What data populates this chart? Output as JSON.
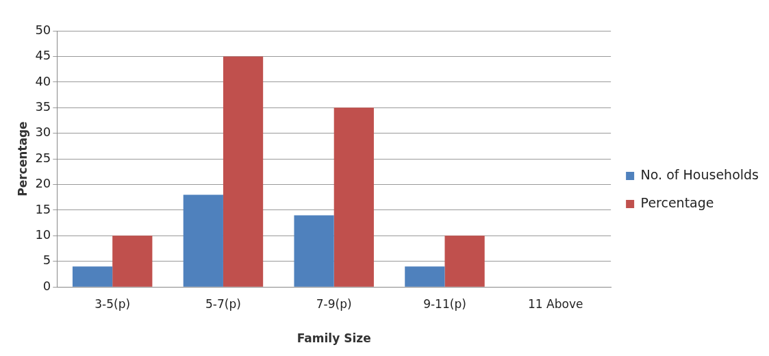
{
  "chart_data": {
    "type": "bar",
    "xlabel": "Family Size",
    "ylabel": "Percentage",
    "categories": [
      "3-5(p)",
      "5-7(p)",
      "7-9(p)",
      "9-11(p)",
      "11 Above"
    ],
    "series": [
      {
        "name": "No. of Households",
        "color": "#4f81bd",
        "values": [
          4,
          18,
          14,
          4,
          0
        ]
      },
      {
        "name": "Percentage",
        "color": "#c0504d",
        "values": [
          10,
          45,
          35,
          10,
          0
        ]
      }
    ],
    "ylim": [
      0,
      50
    ],
    "yticks": [
      0,
      5,
      10,
      15,
      20,
      25,
      30,
      35,
      40,
      45,
      50
    ],
    "grid": "y",
    "legend": "right"
  }
}
